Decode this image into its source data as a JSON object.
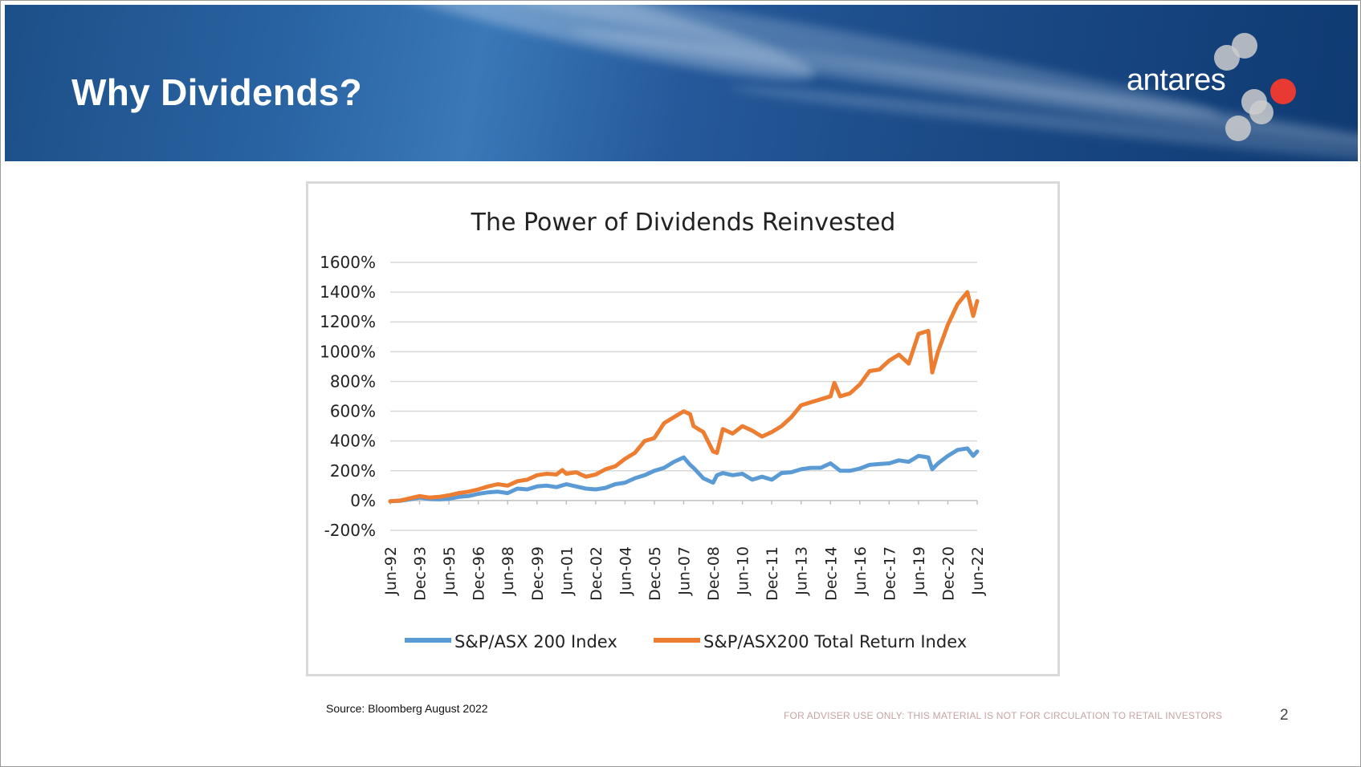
{
  "header": {
    "title": "Why Dividends?",
    "logo_text": "antares"
  },
  "colors": {
    "series1": "#5b9bd5",
    "series2": "#ed7d31",
    "grid": "#d9d9d9",
    "logo_red": "#e83a32"
  },
  "footer": {
    "source": "Source: Bloomberg August 2022",
    "disclaimer": "FOR ADVISER USE ONLY: THIS MATERIAL IS NOT FOR CIRCULATION TO RETAIL INVESTORS",
    "page_number": "2"
  },
  "chart_data": {
    "type": "line",
    "title": "The Power of Dividends Reinvested",
    "xlabel": "",
    "ylabel": "",
    "ylim": [
      -200,
      1600
    ],
    "y_ticks": [
      -200,
      0,
      200,
      400,
      600,
      800,
      1000,
      1200,
      1400,
      1600
    ],
    "y_tick_labels": [
      "-200%",
      "0%",
      "200%",
      "400%",
      "600%",
      "800%",
      "1000%",
      "1200%",
      "1400%",
      "1600%"
    ],
    "x_range": [
      1992.5,
      2022.5
    ],
    "x_tick_positions": [
      1992.5,
      1994.0,
      1995.5,
      1997.0,
      1998.5,
      2000.0,
      2001.5,
      2003.0,
      2004.5,
      2006.0,
      2007.5,
      2009.0,
      2010.5,
      2012.0,
      2013.5,
      2015.0,
      2016.5,
      2018.0,
      2019.5,
      2021.0,
      2022.5
    ],
    "x_tick_labels": [
      "Jun-92",
      "Dec-93",
      "Jun-95",
      "Dec-96",
      "Jun-98",
      "Dec-99",
      "Jun-01",
      "Dec-02",
      "Jun-04",
      "Dec-05",
      "Jun-07",
      "Dec-08",
      "Jun-10",
      "Dec-11",
      "Jun-13",
      "Dec-14",
      "Jun-16",
      "Dec-17",
      "Jun-19",
      "Dec-20",
      "Jun-22"
    ],
    "legend_position": "bottom",
    "series": [
      {
        "name": "S&P/ASX 200 Index",
        "x": [
          1992.5,
          1993.0,
          1993.5,
          1994.0,
          1994.5,
          1995.0,
          1995.5,
          1996.0,
          1996.5,
          1997.0,
          1997.5,
          1998.0,
          1998.5,
          1999.0,
          1999.5,
          2000.0,
          2000.5,
          2001.0,
          2001.5,
          2002.0,
          2002.5,
          2003.0,
          2003.5,
          2004.0,
          2004.5,
          2005.0,
          2005.5,
          2006.0,
          2006.5,
          2007.0,
          2007.5,
          2007.83,
          2008.0,
          2008.5,
          2009.0,
          2009.2,
          2009.5,
          2010.0,
          2010.5,
          2011.0,
          2011.5,
          2012.0,
          2012.5,
          2013.0,
          2013.5,
          2014.0,
          2014.5,
          2015.0,
          2015.2,
          2015.5,
          2016.0,
          2016.5,
          2017.0,
          2017.5,
          2018.0,
          2018.5,
          2019.0,
          2019.5,
          2020.0,
          2020.2,
          2020.5,
          2021.0,
          2021.5,
          2022.0,
          2022.3,
          2022.5
        ],
        "values": [
          -5,
          -2,
          8,
          20,
          10,
          8,
          12,
          25,
          30,
          45,
          55,
          60,
          50,
          80,
          75,
          95,
          100,
          90,
          110,
          95,
          80,
          75,
          85,
          110,
          120,
          150,
          170,
          200,
          220,
          260,
          290,
          240,
          220,
          150,
          120,
          170,
          185,
          170,
          180,
          140,
          160,
          140,
          185,
          190,
          210,
          220,
          220,
          250,
          230,
          200,
          200,
          215,
          240,
          245,
          250,
          270,
          260,
          300,
          290,
          210,
          250,
          300,
          340,
          350,
          300,
          330
        ]
      },
      {
        "name": "S&P/ASX200 Total Return Index",
        "x": [
          1992.5,
          1993.0,
          1993.5,
          1994.0,
          1994.5,
          1995.0,
          1995.5,
          1996.0,
          1996.5,
          1997.0,
          1997.5,
          1998.0,
          1998.5,
          1999.0,
          1999.5,
          2000.0,
          2000.5,
          2001.0,
          2001.3,
          2001.5,
          2002.0,
          2002.5,
          2003.0,
          2003.5,
          2004.0,
          2004.5,
          2005.0,
          2005.5,
          2006.0,
          2006.5,
          2007.0,
          2007.5,
          2007.83,
          2008.0,
          2008.5,
          2009.0,
          2009.2,
          2009.5,
          2010.0,
          2010.5,
          2011.0,
          2011.5,
          2012.0,
          2012.5,
          2013.0,
          2013.5,
          2014.0,
          2014.5,
          2015.0,
          2015.2,
          2015.5,
          2016.0,
          2016.5,
          2017.0,
          2017.5,
          2018.0,
          2018.5,
          2019.0,
          2019.5,
          2020.0,
          2020.2,
          2020.5,
          2021.0,
          2021.5,
          2022.0,
          2022.3,
          2022.5
        ],
        "values": [
          -5,
          0,
          15,
          30,
          20,
          25,
          35,
          50,
          60,
          75,
          95,
          110,
          100,
          130,
          140,
          170,
          180,
          175,
          205,
          180,
          190,
          160,
          175,
          210,
          230,
          280,
          320,
          400,
          420,
          520,
          560,
          600,
          580,
          500,
          460,
          330,
          320,
          480,
          450,
          500,
          470,
          430,
          460,
          500,
          560,
          640,
          660,
          680,
          700,
          790,
          700,
          720,
          780,
          870,
          880,
          940,
          980,
          920,
          1120,
          1140,
          860,
          1000,
          1180,
          1320,
          1400,
          1240,
          1340
        ]
      }
    ]
  }
}
